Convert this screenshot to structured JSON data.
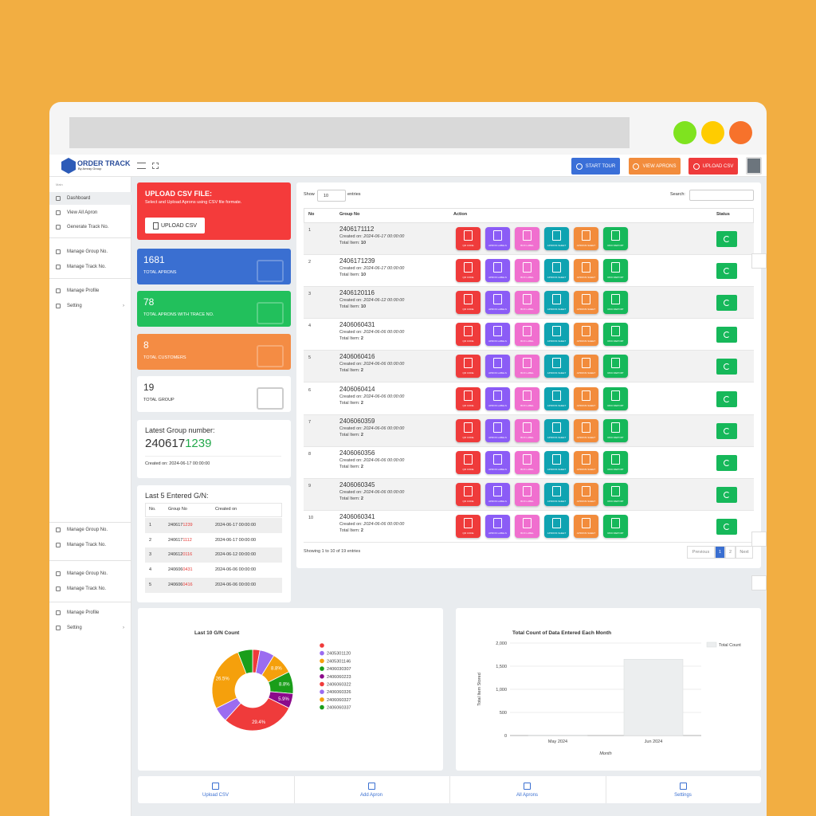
{
  "brand": {
    "name": "ORDER TRACK",
    "tagline": "By Amray Group"
  },
  "header": {
    "buttons": [
      "START TOUR",
      "VIEW APRONS",
      "UPLOAD CSV"
    ]
  },
  "sidebar": {
    "label": "Main",
    "groups": [
      [
        "Dashboard",
        "View All Apron",
        "Generate Track No."
      ],
      [
        "Manage Group No.",
        "Manage Track No."
      ],
      [
        "Manage Profile",
        "Setting"
      ],
      [
        "Manage Group No.",
        "Manage Track No."
      ],
      [
        "Manage Group No.",
        "Manage Track No."
      ],
      [
        "Manage Profile",
        "Setting"
      ]
    ]
  },
  "upload": {
    "title": "UPLOAD CSV FILE:",
    "text": "Select and Upload Aprons using CSV file formate.",
    "button": "UPLOAD CSV"
  },
  "stats": [
    {
      "value": 1681,
      "label": "TOTAL APRONS"
    },
    {
      "value": 78,
      "label": "TOTAL APRONS WITH TRACE NO."
    },
    {
      "value": 8,
      "label": "TOTAL CUSTOMERS"
    },
    {
      "value": 19,
      "label": "TOTAL GROUP"
    }
  ],
  "latest": {
    "title": "Latest Group number:",
    "number": [
      "240617",
      "1239"
    ],
    "created": "Created on: 2024-06-17 00:00:00"
  },
  "recent": {
    "title": "Last 5 Entered G/N:",
    "headers": [
      "No.",
      "Group No",
      "Created on"
    ],
    "rows": [
      [
        "1",
        [
          "240617",
          "1239"
        ],
        "2024-06-17 00:00:00"
      ],
      [
        "2",
        [
          "240617",
          "1112"
        ],
        "2024-06-17 00:00:00"
      ],
      [
        "3",
        [
          "240612",
          "0116"
        ],
        "2024-06-12 00:00:00"
      ],
      [
        "4",
        [
          "240606",
          "0431"
        ],
        "2024-06-06 00:00:00"
      ],
      [
        "5",
        [
          "240606",
          "0416"
        ],
        "2024-06-06 00:00:00"
      ]
    ]
  },
  "table": {
    "show": "Show",
    "length": "10",
    "entries": "entries",
    "search": "Search:",
    "headers": [
      "No",
      "Group No",
      "Action",
      "Status"
    ],
    "actions": [
      "QR CODE",
      "APRON LABELS",
      "BOX LABEL",
      "APRONS SHEET",
      "APRONS SHEET",
      "RFID REPORT"
    ],
    "created_label": "Created on:",
    "total_label": "Total Item:",
    "rows": [
      {
        "no": 1,
        "group": "2406171112",
        "created": "2024-06-17 00:00:00",
        "total": 10
      },
      {
        "no": 2,
        "group": "2406171239",
        "created": "2024-06-17 00:00:00",
        "total": 10
      },
      {
        "no": 3,
        "group": "2406120116",
        "created": "2024-06-12 00:00:00",
        "total": 10
      },
      {
        "no": 4,
        "group": "2406060431",
        "created": "2024-06-06 00:00:00",
        "total": 2
      },
      {
        "no": 5,
        "group": "2406060416",
        "created": "2024-06-06 00:00:00",
        "total": 2
      },
      {
        "no": 6,
        "group": "2406060414",
        "created": "2024-06-06 00:00:00",
        "total": 2
      },
      {
        "no": 7,
        "group": "2406060359",
        "created": "2024-06-06 00:00:00",
        "total": 2
      },
      {
        "no": 8,
        "group": "2406060356",
        "created": "2024-06-06 00:00:00",
        "total": 2
      },
      {
        "no": 9,
        "group": "2406060345",
        "created": "2024-06-06 00:00:00",
        "total": 2
      },
      {
        "no": 10,
        "group": "2406060341",
        "created": "2024-06-06 00:00:00",
        "total": 2
      }
    ],
    "info": "Showing 1 to 10 of 19 entries",
    "pagination": [
      "Previous",
      "1",
      "2",
      "Next"
    ]
  },
  "chart_data": [
    {
      "type": "pie",
      "title": "Last 10 G/N Count",
      "categories": [
        null,
        "2405301120",
        "2405301146",
        "2406030307",
        "2406060223",
        "2406060322",
        "2406060326",
        "2406060327",
        "2406060337"
      ],
      "values": [
        2.9,
        5.9,
        8.8,
        8.8,
        5.9,
        29.4,
        5.9,
        26.5,
        5.9
      ],
      "value_labels": [
        null,
        null,
        "8.8%",
        "8.8%",
        "5.9%",
        "29.4%",
        null,
        "26.5%",
        null
      ],
      "colors": [
        "#ef3b3b",
        "#9b6cf0",
        "#f5a00c",
        "#1a9e1a",
        "#8b0a8b",
        "#ef3b3b",
        "#9b6cf0",
        "#f5a00c",
        "#1a9e1a"
      ]
    },
    {
      "type": "bar",
      "title": "Total Count of Data Entered Each Month",
      "categories": [
        "May 2024",
        "Jun 2024"
      ],
      "series": [
        {
          "name": "Total Count",
          "color": "#eceeef",
          "values": [
            10,
            1650
          ]
        }
      ],
      "xlabel": "Month",
      "ylabel": "Total Item Stored",
      "ylim": [
        0,
        2000
      ],
      "yticks": [
        0,
        500,
        {
          "value": 1000,
          "label": "1,000"
        },
        {
          "value": 1500,
          "label": "1,500"
        },
        {
          "value": 2000,
          "label": "2,000"
        }
      ],
      "grid": true
    }
  ],
  "bottom_nav": [
    "Upload CSV",
    "Add Apron",
    "All Aprons",
    "Settings"
  ]
}
